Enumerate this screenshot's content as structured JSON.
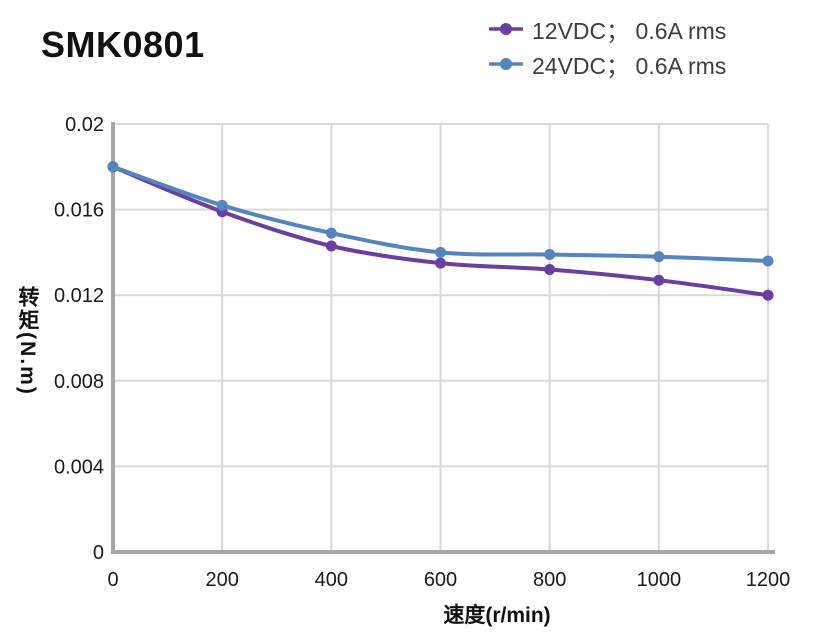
{
  "chart_data": {
    "type": "line",
    "title": "SMK0801",
    "xlabel": "速度(r/min)",
    "ylabel": "转矩(N.m)",
    "x": [
      0,
      200,
      400,
      600,
      800,
      1000,
      1200
    ],
    "series": [
      {
        "name": "12VDC； 0.6A rms",
        "color": "#6b3fa1",
        "values": [
          0.018,
          0.0159,
          0.0143,
          0.0135,
          0.0132,
          0.0127,
          0.012
        ]
      },
      {
        "name": "24VDC； 0.6A rms",
        "color": "#5584bf",
        "values": [
          0.018,
          0.0162,
          0.0149,
          0.014,
          0.0139,
          0.0138,
          0.0136
        ]
      }
    ],
    "xlim": [
      0,
      1200
    ],
    "ylim": [
      0,
      0.02
    ],
    "x_ticks": [
      0,
      200,
      400,
      600,
      800,
      1000,
      1200
    ],
    "y_ticks": [
      0,
      0.004,
      0.008,
      0.012,
      0.016,
      0.02
    ],
    "grid": true,
    "legend_position": "top-right"
  },
  "style": {
    "grid_color": "#d9d9d9",
    "spine_color": "#a6a6a6",
    "tick_text_color": "#1a1a1a",
    "legend_text_color": "#3d3d3d",
    "title_color": "#111111"
  }
}
